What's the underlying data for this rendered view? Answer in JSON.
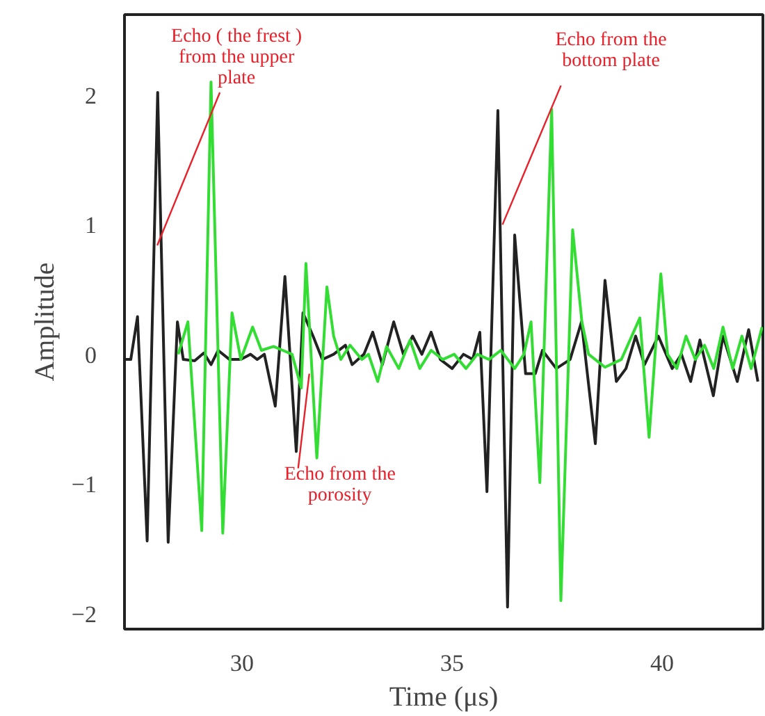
{
  "chart_data": {
    "type": "line",
    "xlabel": "Time (μs)",
    "ylabel": "Amplitude",
    "xlim": [
      27.2,
      42.4
    ],
    "ylim": [
      -2.12,
      2.62
    ],
    "xticks": [
      30,
      35,
      40
    ],
    "yticks": [
      -2,
      -1,
      0,
      1,
      2
    ],
    "grid": false,
    "marker": "none",
    "line_style": "solid",
    "series": [
      {
        "color": "#222222",
        "x": [
          27.2,
          27.35,
          27.51,
          27.74,
          27.99,
          28.24,
          28.46,
          28.6,
          28.87,
          29.09,
          29.26,
          29.43,
          29.7,
          29.97,
          30.2,
          30.36,
          30.53,
          30.79,
          31.02,
          31.29,
          31.45,
          31.69,
          31.91,
          32.18,
          32.46,
          32.62,
          32.9,
          33.11,
          33.34,
          33.61,
          33.84,
          34.06,
          34.28,
          34.5,
          34.72,
          35.0,
          35.27,
          35.49,
          35.66,
          35.83,
          36.09,
          36.32,
          36.49,
          36.75,
          36.98,
          37.15,
          37.48,
          37.81,
          38.08,
          38.41,
          38.64,
          38.91,
          39.14,
          39.37,
          39.58,
          39.91,
          40.24,
          40.46,
          40.68,
          40.9,
          41.22,
          41.45,
          41.79,
          42.06,
          42.28
        ],
        "values": [
          -0.04,
          -0.04,
          0.29,
          -1.44,
          2.02,
          -1.45,
          0.25,
          -0.04,
          -0.05,
          0.01,
          -0.08,
          0.03,
          -0.04,
          -0.04,
          0.0,
          -0.04,
          0.0,
          -0.4,
          0.6,
          -0.75,
          0.32,
          0.14,
          -0.04,
          0.0,
          0.07,
          -0.08,
          0.0,
          0.17,
          -0.08,
          0.25,
          0.0,
          0.14,
          0.0,
          0.17,
          -0.04,
          -0.11,
          0.0,
          -0.04,
          0.17,
          -1.06,
          1.88,
          -1.95,
          0.92,
          -0.15,
          -0.15,
          0.03,
          -0.11,
          -0.04,
          0.25,
          -0.69,
          0.57,
          -0.21,
          -0.11,
          0.14,
          -0.08,
          0.14,
          -0.11,
          0.0,
          -0.21,
          0.11,
          -0.32,
          0.14,
          -0.21,
          0.19,
          -0.21
        ]
      },
      {
        "color": "#33dd33",
        "x": [
          28.48,
          28.71,
          29.04,
          29.26,
          29.54,
          29.76,
          29.97,
          30.25,
          30.46,
          30.75,
          30.97,
          31.19,
          31.41,
          31.52,
          31.78,
          32.02,
          32.18,
          32.35,
          32.57,
          32.85,
          33.01,
          33.23,
          33.44,
          33.73,
          34.0,
          34.23,
          34.5,
          34.78,
          35.05,
          35.33,
          35.6,
          35.88,
          36.16,
          36.49,
          36.71,
          36.88,
          37.09,
          37.37,
          37.59,
          37.87,
          38.09,
          38.25,
          38.64,
          39.03,
          39.47,
          39.69,
          39.97,
          40.13,
          40.35,
          40.57,
          40.79,
          41.01,
          41.23,
          41.45,
          41.68,
          41.9,
          42.12,
          42.38
        ],
        "values": [
          0.0,
          0.25,
          -1.36,
          2.1,
          -1.38,
          0.32,
          -0.04,
          0.21,
          0.03,
          0.06,
          0.03,
          0.0,
          -0.26,
          0.7,
          -0.8,
          0.52,
          0.14,
          -0.04,
          0.07,
          -0.04,
          0.0,
          -0.21,
          0.06,
          -0.11,
          0.11,
          -0.11,
          0.03,
          -0.04,
          0.0,
          -0.11,
          0.0,
          -0.04,
          0.03,
          -0.11,
          0.0,
          0.25,
          -0.99,
          1.89,
          -1.9,
          0.96,
          0.25,
          0.0,
          -0.1,
          -0.04,
          0.28,
          -0.64,
          0.62,
          0.0,
          -0.11,
          0.14,
          -0.04,
          0.07,
          -0.11,
          0.21,
          -0.11,
          0.14,
          -0.11,
          0.21
        ]
      }
    ],
    "annotations": [
      {
        "text": "Echo ( the frest )\nfrom the upper\nplate",
        "x": 27.98,
        "y": 0.84
      },
      {
        "text": "Echo from the\nbottom plate",
        "x": 36.2,
        "y": 1.0
      },
      {
        "text": "Echo from the\nporosity",
        "x": 31.6,
        "y": -0.15
      }
    ]
  }
}
